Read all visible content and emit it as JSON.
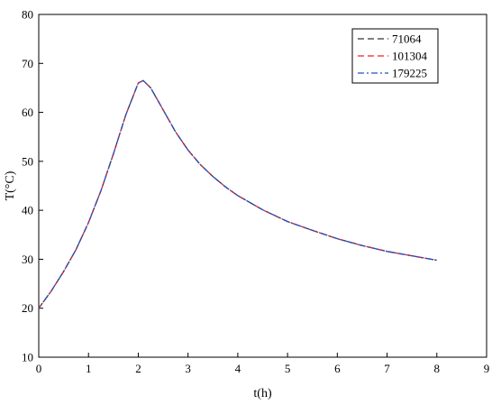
{
  "chart_data": {
    "type": "line",
    "title": "",
    "xlabel": "t(h)",
    "ylabel": "T(°C)",
    "xlim": [
      0,
      9
    ],
    "ylim": [
      10,
      80
    ],
    "x_ticks": [
      "0",
      "1",
      "2",
      "3",
      "4",
      "5",
      "6",
      "7",
      "8",
      "9"
    ],
    "y_ticks": [
      "10",
      "20",
      "30",
      "40",
      "50",
      "60",
      "70",
      "80"
    ],
    "grid": false,
    "legend_position": "top-right",
    "x": [
      0,
      0.25,
      0.5,
      0.75,
      1.0,
      1.25,
      1.5,
      1.75,
      2.0,
      2.1,
      2.25,
      2.5,
      2.75,
      3.0,
      3.25,
      3.5,
      3.75,
      4.0,
      4.5,
      5.0,
      5.5,
      6.0,
      6.5,
      7.0,
      7.5,
      8.0
    ],
    "series": [
      {
        "name": "71064",
        "color": "#333333",
        "dash": "dash",
        "values": [
          20.0,
          23.5,
          27.5,
          32.0,
          37.5,
          44.0,
          51.5,
          59.5,
          66.0,
          66.5,
          65.0,
          60.5,
          56.0,
          52.3,
          49.3,
          46.9,
          44.8,
          43.0,
          40.1,
          37.7,
          35.9,
          34.2,
          32.8,
          31.6,
          30.7,
          29.8
        ]
      },
      {
        "name": "101304",
        "color": "#ee2020",
        "dash": "dash",
        "values": [
          20.0,
          23.5,
          27.5,
          32.0,
          37.5,
          44.0,
          51.5,
          59.5,
          66.0,
          66.5,
          65.0,
          60.5,
          56.0,
          52.3,
          49.3,
          46.9,
          44.8,
          43.0,
          40.1,
          37.7,
          35.9,
          34.2,
          32.8,
          31.6,
          30.7,
          29.8
        ]
      },
      {
        "name": "179225",
        "color": "#2050c8",
        "dash": "dashdot",
        "values": [
          20.0,
          23.5,
          27.5,
          32.0,
          37.5,
          44.0,
          51.5,
          59.5,
          66.0,
          66.5,
          65.0,
          60.5,
          56.0,
          52.3,
          49.3,
          46.9,
          44.8,
          43.0,
          40.1,
          37.7,
          35.9,
          34.2,
          32.8,
          31.6,
          30.7,
          29.8
        ]
      }
    ]
  }
}
